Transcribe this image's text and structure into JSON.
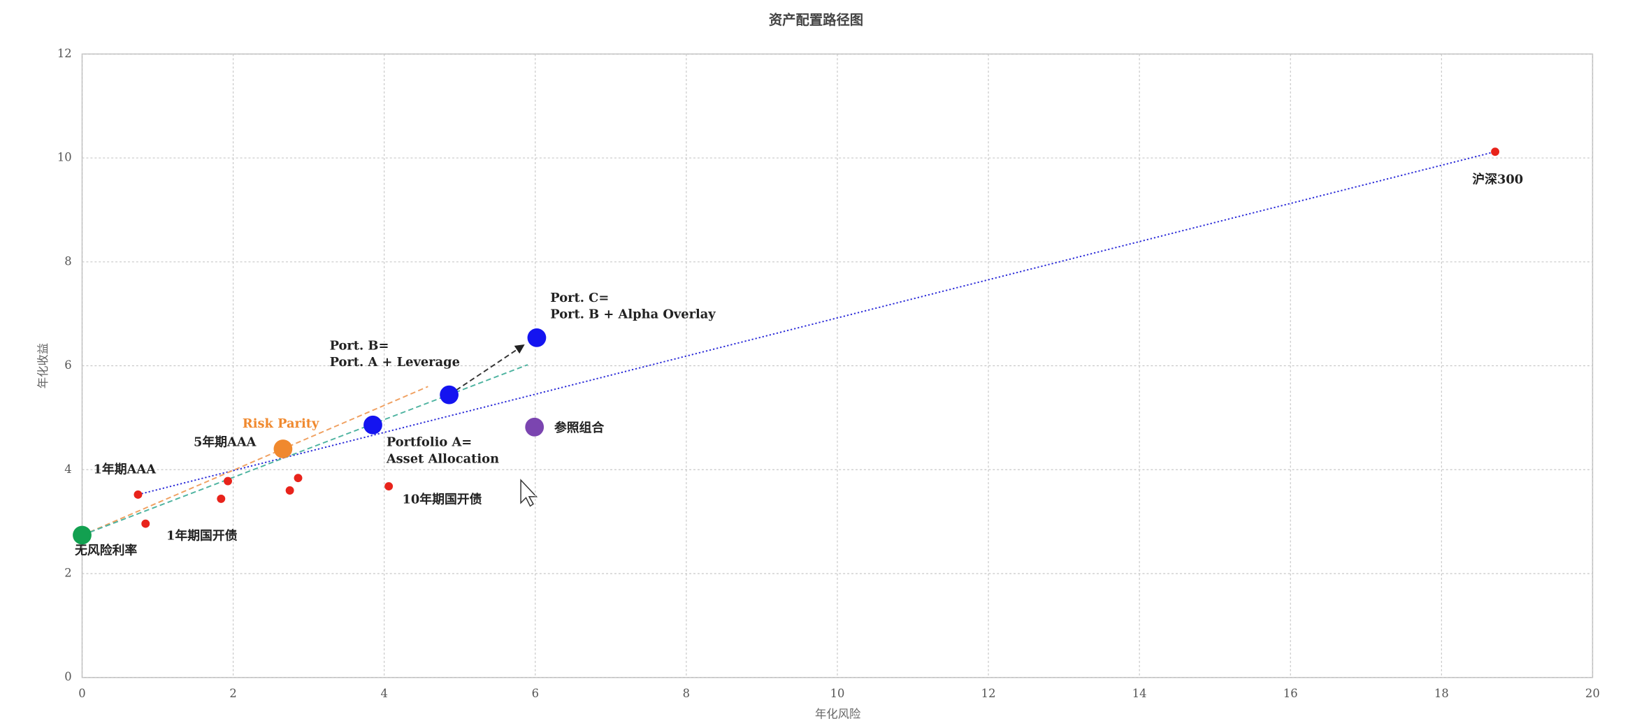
{
  "chart_data": {
    "type": "scatter",
    "title": "资产配置路径图",
    "x_label": "年化风险",
    "y_label": "年化收益",
    "xlim": [
      0,
      20
    ],
    "ylim": [
      0,
      12
    ],
    "xticks": [
      0,
      2,
      4,
      6,
      8,
      10,
      12,
      14,
      16,
      18,
      20
    ],
    "yticks": [
      0,
      2,
      4,
      6,
      8,
      10,
      12
    ],
    "grid": true,
    "lines": [
      {
        "x": [
          0.74,
          18.71
        ],
        "y": [
          3.52,
          10.12
        ],
        "color": "#2a2ad8",
        "dash": "dotted"
      },
      {
        "x": [
          0.1,
          4.58
        ],
        "y": [
          2.8,
          5.6
        ],
        "color": "#f0a060",
        "dash": "dashed"
      },
      {
        "x": [
          0,
          5.9
        ],
        "y": [
          2.74,
          6.02
        ],
        "color": "#4db3a0",
        "dash": "dashed"
      },
      {
        "x": [
          4.86,
          5.85
        ],
        "y": [
          5.44,
          6.4
        ],
        "color": "#333333",
        "dash": "dashed",
        "arrow": true
      }
    ],
    "points": [
      {
        "x": 0,
        "y": 2.74,
        "color": "#12a050",
        "marker": "large",
        "label": [
          "无风险利率"
        ]
      },
      {
        "x": 0.74,
        "y": 3.52,
        "color": "#e8231b",
        "marker": "small",
        "label": [
          "1年期AAA"
        ]
      },
      {
        "x": 0.84,
        "y": 2.96,
        "color": "#e8231b",
        "marker": "small",
        "label": [
          "1年期国开债"
        ]
      },
      {
        "x": 1.84,
        "y": 3.44,
        "color": "#e8231b",
        "marker": "small"
      },
      {
        "x": 1.93,
        "y": 3.78,
        "color": "#e8231b",
        "marker": "small",
        "label": [
          "5年期AAA"
        ]
      },
      {
        "x": 2.75,
        "y": 3.6,
        "color": "#e8231b",
        "marker": "small"
      },
      {
        "x": 2.86,
        "y": 3.84,
        "color": "#e8231b",
        "marker": "small"
      },
      {
        "x": 4.06,
        "y": 3.68,
        "color": "#e8231b",
        "marker": "small",
        "label": [
          "10年期国开债"
        ]
      },
      {
        "x": 18.71,
        "y": 10.12,
        "color": "#e8231b",
        "marker": "small",
        "label": [
          "沪深300"
        ]
      },
      {
        "x": 2.66,
        "y": 4.4,
        "color": "#f0892e",
        "marker": "large",
        "label": [
          "Risk Parity"
        ],
        "label_color": "#f0892e"
      },
      {
        "x": 3.85,
        "y": 4.86,
        "color": "#1414f0",
        "marker": "large",
        "label": [
          "Portfolio A=",
          "Asset Allocation"
        ]
      },
      {
        "x": 4.86,
        "y": 5.44,
        "color": "#1414f0",
        "marker": "large",
        "label": [
          "Port. B=",
          "Port. A + Leverage"
        ]
      },
      {
        "x": 6.02,
        "y": 6.54,
        "color": "#1414f0",
        "marker": "large",
        "label": [
          "Port. C=",
          "Port. B + Alpha Overlay"
        ]
      },
      {
        "x": 5.99,
        "y": 4.82,
        "color": "#7b45b0",
        "marker": "large",
        "label": [
          "参照组合"
        ]
      }
    ]
  }
}
